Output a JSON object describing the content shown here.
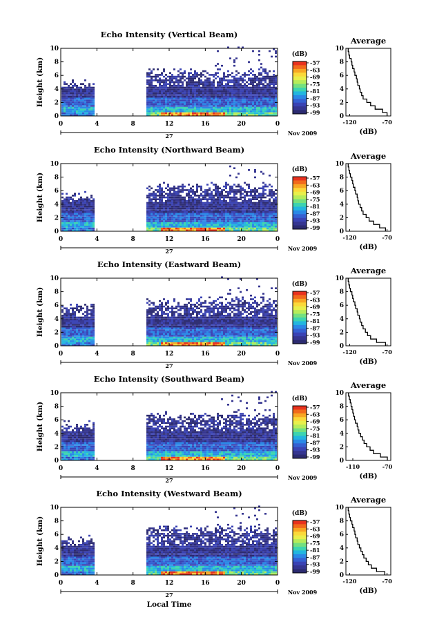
{
  "footer": {
    "xlabel": "Local Time"
  },
  "colorbar": {
    "unit": "(dB)",
    "ticks": [
      "-57",
      "-63",
      "-69",
      "-75",
      "-81",
      "-87",
      "-93",
      "-99"
    ],
    "colors": [
      "#e8321e",
      "#f26a1c",
      "#f8a724",
      "#fbd93a",
      "#e9ef4b",
      "#b6ec5a",
      "#74e07f",
      "#3dd4b0",
      "#23b6df",
      "#2b88e6",
      "#3560d2",
      "#3a43b4",
      "#353590",
      "#2c2b70"
    ]
  },
  "chart_data": [
    {
      "type": "heatmap",
      "title": "Echo Intensity (Vertical Beam)",
      "ylabel": "Height (km)",
      "yticks": [
        "0",
        "2",
        "4",
        "6",
        "8",
        "10"
      ],
      "ylim": [
        0,
        10
      ],
      "xticks": [
        "0",
        "4",
        "8",
        "12",
        "16",
        "20",
        "0"
      ],
      "xlim": [
        0,
        24
      ],
      "date_label": "27",
      "month_label": "Nov 2009",
      "gap": [
        3.7,
        9.3
      ],
      "max_height_left": 4.6,
      "max_height_right": 6.3,
      "profile": {
        "title": "Average",
        "xlabel": "(dB)",
        "xticks": [
          "-120",
          "-70"
        ],
        "xlim": [
          -125,
          -65
        ],
        "height": [
          0,
          0.5,
          1,
          1.5,
          2,
          2.5,
          3,
          3.5,
          4,
          4.5,
          5,
          5.5,
          6,
          6.5,
          7,
          7.5,
          8,
          8.5,
          9,
          9.5
        ],
        "db": [
          -70,
          -76,
          -86,
          -92,
          -97,
          -102,
          -104,
          -106,
          -107,
          -109,
          -110,
          -111,
          -113,
          -114,
          -116,
          -117,
          -118,
          -120,
          -121,
          -122
        ]
      }
    },
    {
      "type": "heatmap",
      "title": "Echo Intensity (Northward Beam)",
      "ylabel": "Height (km)",
      "yticks": [
        "0",
        "2",
        "4",
        "6",
        "8",
        "10"
      ],
      "ylim": [
        0,
        10
      ],
      "xticks": [
        "0",
        "4",
        "8",
        "12",
        "16",
        "20",
        "0"
      ],
      "xlim": [
        0,
        24
      ],
      "date_label": "27",
      "month_label": "Nov 2009",
      "gap": [
        3.7,
        9.3
      ],
      "max_height_left": 5.1,
      "max_height_right": 6.5,
      "profile": {
        "title": "Average",
        "xlabel": "(dB)",
        "xticks": [
          "-120",
          "-70"
        ],
        "xlim": [
          -125,
          -65
        ],
        "height": [
          0,
          0.5,
          1,
          1.5,
          2,
          2.5,
          3,
          3.5,
          4,
          4.5,
          5,
          5.5,
          6,
          6.5,
          7,
          7.5,
          8,
          8.5,
          9,
          9.5
        ],
        "db": [
          -72,
          -80,
          -88,
          -94,
          -98,
          -102,
          -104,
          -106,
          -108,
          -109,
          -110,
          -112,
          -113,
          -115,
          -116,
          -117,
          -119,
          -120,
          -121,
          -122
        ]
      }
    },
    {
      "type": "heatmap",
      "title": "Echo Intensity (Eastward Beam)",
      "ylabel": "Height (km)",
      "yticks": [
        "0",
        "2",
        "4",
        "6",
        "8",
        "10"
      ],
      "ylim": [
        0,
        10
      ],
      "xticks": [
        "0",
        "4",
        "8",
        "12",
        "16",
        "20",
        "0"
      ],
      "xlim": [
        0,
        24
      ],
      "date_label": "27",
      "month_label": "Nov 2009",
      "gap": [
        3.7,
        9.3
      ],
      "max_height_left": 5.8,
      "max_height_right": 6.5,
      "profile": {
        "title": "Average",
        "xlabel": "(dB)",
        "xticks": [
          "-120",
          "-70"
        ],
        "xlim": [
          -125,
          -65
        ],
        "height": [
          0,
          0.5,
          1,
          1.5,
          2,
          2.5,
          3,
          3.5,
          4,
          4.5,
          5,
          5.5,
          6,
          6.5,
          7,
          7.5,
          8,
          8.5,
          9,
          9.5
        ],
        "db": [
          -72,
          -84,
          -92,
          -96,
          -99,
          -102,
          -104,
          -106,
          -107,
          -109,
          -110,
          -112,
          -113,
          -115,
          -116,
          -117,
          -119,
          -120,
          -121,
          -122
        ]
      }
    },
    {
      "type": "heatmap",
      "title": "Echo Intensity (Southward Beam)",
      "ylabel": "Height (km)",
      "yticks": [
        "0",
        "2",
        "4",
        "6",
        "8",
        "10"
      ],
      "ylim": [
        0,
        10
      ],
      "xticks": [
        "0",
        "4",
        "8",
        "12",
        "16",
        "20",
        "0"
      ],
      "xlim": [
        0,
        24
      ],
      "date_label": "27",
      "month_label": "Nov 2009",
      "gap": [
        3.7,
        9.3
      ],
      "max_height_left": 5.2,
      "max_height_right": 6.4,
      "profile": {
        "title": "Average",
        "xlabel": "(dB)",
        "xticks": [
          "-110",
          "-70"
        ],
        "xlim": [
          -118,
          -66
        ],
        "height": [
          0,
          0.5,
          1,
          1.5,
          2,
          2.5,
          3,
          3.5,
          4,
          4.5,
          5,
          5.5,
          6,
          6.5,
          7,
          7.5,
          8,
          8.5,
          9,
          9.5
        ],
        "db": [
          -70,
          -78,
          -86,
          -90,
          -94,
          -97,
          -99,
          -101,
          -103,
          -104,
          -105,
          -107,
          -108,
          -109,
          -110,
          -111,
          -112,
          -113,
          -114,
          -115
        ]
      }
    },
    {
      "type": "heatmap",
      "title": "Echo Intensity (Westward Beam)",
      "ylabel": "Height (km)",
      "yticks": [
        "0",
        "2",
        "4",
        "6",
        "8",
        "10"
      ],
      "ylim": [
        0,
        10
      ],
      "xticks": [
        "0",
        "4",
        "8",
        "12",
        "16",
        "20",
        "0"
      ],
      "xlim": [
        0,
        24
      ],
      "date_label": "27",
      "month_label": "Nov 2009",
      "gap": [
        3.7,
        9.3
      ],
      "max_height_left": 5.0,
      "max_height_right": 6.6,
      "profile": {
        "title": "Average",
        "xlabel": "(dB)",
        "xticks": [
          "-120",
          "-70"
        ],
        "xlim": [
          -125,
          -65
        ],
        "height": [
          0,
          0.5,
          1,
          1.5,
          2,
          2.5,
          3,
          3.5,
          4,
          4.5,
          5,
          5.5,
          6,
          6.5,
          7,
          7.5,
          8,
          8.5,
          9,
          9.5
        ],
        "db": [
          -73,
          -84,
          -91,
          -95,
          -98,
          -101,
          -103,
          -105,
          -107,
          -109,
          -110,
          -112,
          -113,
          -114,
          -116,
          -117,
          -119,
          -120,
          -121,
          -122
        ]
      }
    }
  ]
}
